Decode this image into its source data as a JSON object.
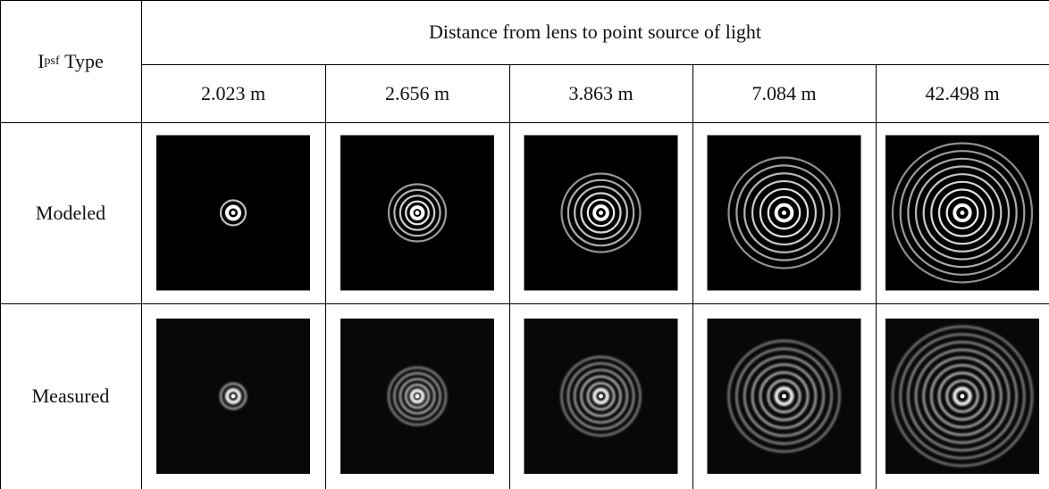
{
  "header": {
    "row_label_main": "I",
    "row_label_sub": "psf",
    "row_label_rest": "Type",
    "title": "Distance from lens to point source of light",
    "distances": [
      "2.023 m",
      "2.656 m",
      "3.863 m",
      "7.084 m",
      "42.498 m"
    ]
  },
  "rows": [
    "Modeled",
    "Measured"
  ]
}
